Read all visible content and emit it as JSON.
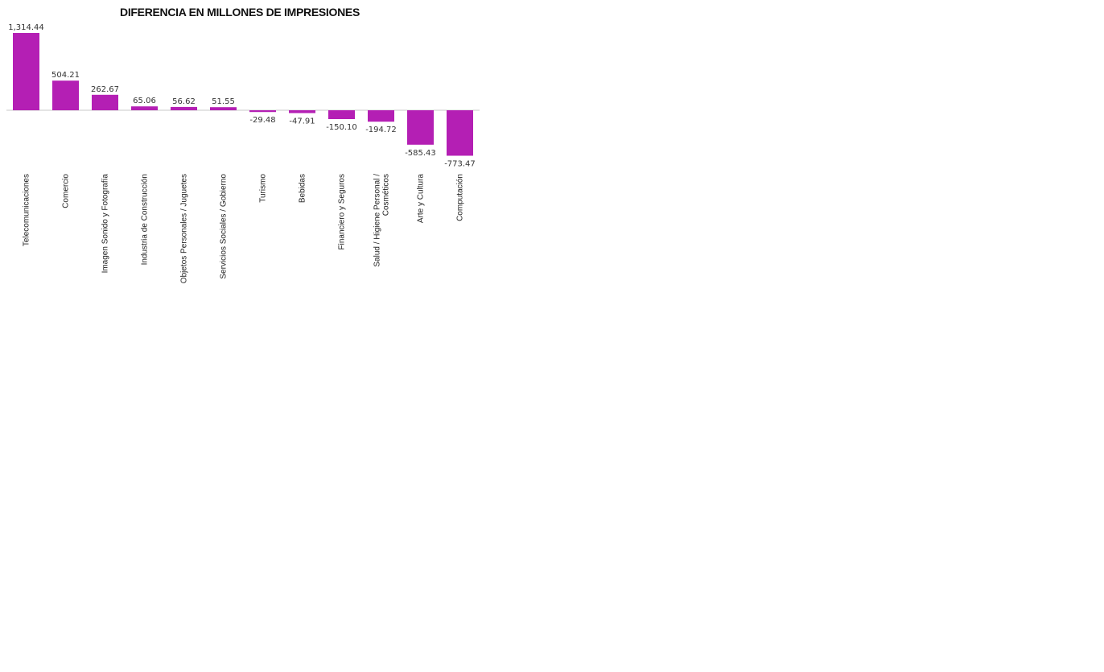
{
  "chart_data": {
    "type": "bar",
    "title": "DIFERENCIA EN MILLONES DE IMPRESIONES",
    "categories": [
      "Telecomunicaciones",
      "Comercio",
      "Imagen Sonido y Fotografía",
      "Industria de Construcción",
      "Objetos Personales / Juguetes",
      "Servicios Sociales / Gobierno",
      "Turismo",
      "Bebidas",
      "Financiero y Seguros",
      "Salud / Higiene Personal / Cosméticos",
      "Arte y Cultura",
      "Computación"
    ],
    "category_lines": [
      [
        "Telecomunicaciones"
      ],
      [
        "Comercio"
      ],
      [
        "Imagen Sonido y Fotografía"
      ],
      [
        "Industria de Construcción"
      ],
      [
        "Objetos Personales / Juguetes"
      ],
      [
        "Servicios Sociales / Gobierno"
      ],
      [
        "Turismo"
      ],
      [
        "Bebidas"
      ],
      [
        "Financiero y Seguros"
      ],
      [
        "Salud / Higiene Personal /",
        "Cosméticos"
      ],
      [
        "Arte y Cultura"
      ],
      [
        "Computación"
      ]
    ],
    "values": [
      1314.44,
      504.21,
      262.67,
      65.06,
      56.62,
      51.55,
      -29.48,
      -47.91,
      -150.1,
      -194.72,
      -585.43,
      -773.47
    ],
    "value_labels": [
      "1,314.44",
      "504.21",
      "262.67",
      "65.06",
      "56.62",
      "51.55",
      "-29.48",
      "-47.91",
      "-150.10",
      "-194.72",
      "-585.43",
      "-773.47"
    ],
    "xlabel": "",
    "ylabel": "",
    "ylim": [
      -773.47,
      1314.44
    ],
    "grid": false,
    "legend": "none",
    "bar_color": "#b41fb4",
    "baseline_color": "#c8c8c8"
  }
}
